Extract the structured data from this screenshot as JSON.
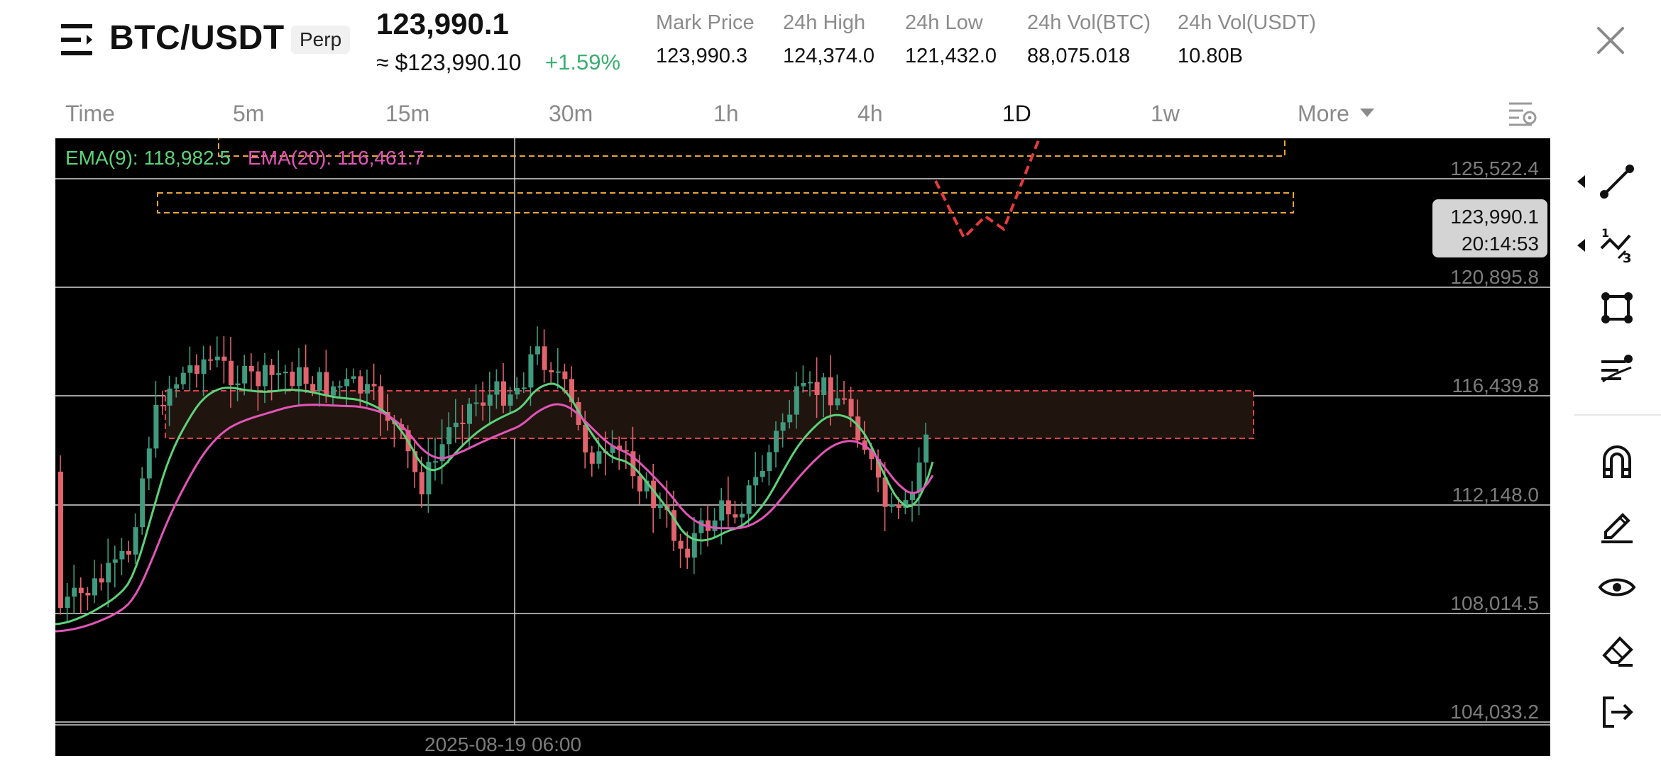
{
  "header": {
    "pair": "BTC/USDT",
    "badge": "Perp",
    "last_price": "123,990.1",
    "usd_approx": "≈ $123,990.10",
    "change_pct": "+1.59%",
    "stats": [
      {
        "label": "Mark Price",
        "value": "123,990.3"
      },
      {
        "label": "24h High",
        "value": "124,374.0"
      },
      {
        "label": "24h Low",
        "value": "121,432.0"
      },
      {
        "label": "24h Vol(BTC)",
        "value": "88,075.018"
      },
      {
        "label": "24h Vol(USDT)",
        "value": "10.80B"
      }
    ]
  },
  "timeframes": {
    "items": [
      "Time",
      "5m",
      "15m",
      "30m",
      "1h",
      "4h",
      "1D",
      "1w",
      "More"
    ],
    "active": "1D"
  },
  "indicators": {
    "ema9_label": "EMA(9): 118,982.5",
    "ema20_label": "EMA(20): 116,461.7"
  },
  "price_axis": [
    "125,522.4",
    "120,895.8",
    "116,439.8",
    "112,148.0",
    "108,014.5",
    "104,033.2"
  ],
  "current_price_tag": {
    "price": "123,990.1",
    "countdown": "20:14:53"
  },
  "crosshair_date": "2025-08-19 06:00",
  "colors": {
    "up": "#3f9a7e",
    "down": "#e3636c",
    "ema9": "#5cd27a",
    "ema20": "#e255b8",
    "resistance_box": "#e8a43a",
    "support_box": "#e0404a",
    "projection": "#e53a3a",
    "positive": "#3cae72"
  },
  "toolbar": [
    "trend-line-icon",
    "fibonacci-icon",
    "shape-icon",
    "indicator-icon",
    "magnet-icon",
    "pencil-icon",
    "eye-icon",
    "eraser-icon",
    "exit-icon"
  ]
}
